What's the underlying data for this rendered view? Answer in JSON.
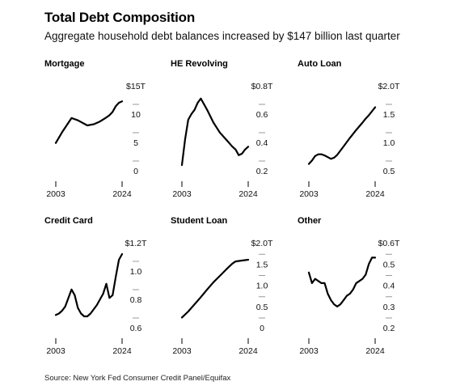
{
  "title": "Total Debt Composition",
  "subtitle": "Aggregate household debt balances increased by $147 billion last quarter",
  "source": "Source: New York Fed Consumer Credit Panel/Equifax",
  "chart_data": [
    {
      "type": "line",
      "title": "Mortgage",
      "x": [
        2003,
        2005,
        2008,
        2010,
        2013,
        2015,
        2017,
        2019,
        2020,
        2021,
        2022,
        2023,
        2024
      ],
      "values": [
        4.9,
        6.8,
        9.3,
        8.9,
        8.0,
        8.2,
        8.7,
        9.4,
        9.8,
        10.4,
        11.4,
        12.0,
        12.25
      ],
      "x_ticks": [
        "2003",
        "2024"
      ],
      "y_ticks": [
        "$15T",
        "10",
        "5",
        "0"
      ],
      "ylim": [
        0,
        15
      ],
      "line_color": "#000000"
    },
    {
      "type": "line",
      "title": "HE Revolving",
      "x": [
        2003,
        2004,
        2005,
        2006,
        2007,
        2008,
        2009,
        2010,
        2011,
        2013,
        2015,
        2017,
        2019,
        2020,
        2021,
        2022,
        2023,
        2024
      ],
      "values": [
        0.24,
        0.42,
        0.56,
        0.6,
        0.63,
        0.68,
        0.71,
        0.67,
        0.63,
        0.54,
        0.47,
        0.42,
        0.37,
        0.35,
        0.31,
        0.32,
        0.35,
        0.37
      ],
      "x_ticks": [
        "2003",
        "2024"
      ],
      "y_ticks": [
        "$0.8T",
        "0.6",
        "0.4",
        "0.2"
      ],
      "ylim": [
        0.2,
        0.8
      ],
      "line_color": "#000000"
    },
    {
      "type": "line",
      "title": "Auto Loan",
      "x": [
        2003,
        2004,
        2005,
        2006,
        2007,
        2008,
        2009,
        2010,
        2011,
        2012,
        2014,
        2016,
        2018,
        2020,
        2021,
        2022,
        2023,
        2024
      ],
      "values": [
        0.62,
        0.68,
        0.76,
        0.79,
        0.79,
        0.77,
        0.74,
        0.71,
        0.73,
        0.78,
        0.93,
        1.08,
        1.22,
        1.35,
        1.42,
        1.48,
        1.55,
        1.62
      ],
      "x_ticks": [
        "2003",
        "2024"
      ],
      "y_ticks": [
        "$2.0T",
        "1.5",
        "1.0",
        "0.5"
      ],
      "ylim": [
        0.5,
        2.0
      ],
      "line_color": "#000000"
    },
    {
      "type": "line",
      "title": "Credit Card",
      "x": [
        2003,
        2004,
        2005,
        2006,
        2007,
        2008,
        2009,
        2010,
        2011,
        2012,
        2013,
        2014,
        2016,
        2018,
        2019,
        2020,
        2021,
        2022,
        2023,
        2024
      ],
      "values": [
        0.69,
        0.7,
        0.72,
        0.75,
        0.81,
        0.87,
        0.83,
        0.74,
        0.7,
        0.68,
        0.68,
        0.7,
        0.76,
        0.84,
        0.91,
        0.81,
        0.83,
        0.96,
        1.08,
        1.12
      ],
      "x_ticks": [
        "2003",
        "2024"
      ],
      "y_ticks": [
        "$1.2T",
        "1.0",
        "0.8",
        "0.6"
      ],
      "ylim": [
        0.6,
        1.2
      ],
      "line_color": "#000000"
    },
    {
      "type": "line",
      "title": "Student Loan",
      "x": [
        2003,
        2005,
        2007,
        2009,
        2011,
        2013,
        2015,
        2017,
        2019,
        2020,
        2022,
        2024
      ],
      "values": [
        0.24,
        0.38,
        0.55,
        0.72,
        0.9,
        1.07,
        1.22,
        1.37,
        1.51,
        1.56,
        1.58,
        1.6
      ],
      "x_ticks": [
        "2003",
        "2024"
      ],
      "y_ticks": [
        "$2.0T",
        "1.5",
        "1.0",
        "0.5",
        "0"
      ],
      "ylim": [
        0,
        2.0
      ],
      "line_color": "#000000"
    },
    {
      "type": "line",
      "title": "Other",
      "x": [
        2003,
        2004,
        2005,
        2006,
        2007,
        2008,
        2009,
        2010,
        2011,
        2012,
        2013,
        2014,
        2015,
        2016,
        2017,
        2018,
        2019,
        2020,
        2021,
        2022,
        2023,
        2024
      ],
      "values": [
        0.46,
        0.41,
        0.43,
        0.42,
        0.41,
        0.41,
        0.36,
        0.33,
        0.31,
        0.3,
        0.31,
        0.33,
        0.35,
        0.36,
        0.38,
        0.41,
        0.42,
        0.43,
        0.45,
        0.5,
        0.53,
        0.53
      ],
      "x_ticks": [
        "2003",
        "2024"
      ],
      "y_ticks": [
        "$0.6T",
        "0.5",
        "0.4",
        "0.3",
        "0.2"
      ],
      "ylim": [
        0.2,
        0.6
      ],
      "line_color": "#000000"
    }
  ]
}
